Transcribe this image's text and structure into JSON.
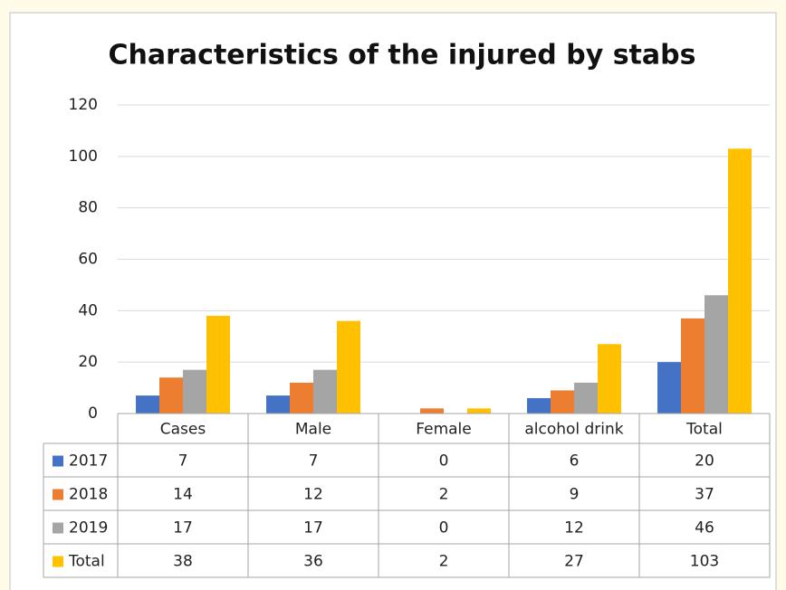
{
  "chart_data": {
    "type": "bar",
    "title": "Characteristics of the injured by stabs",
    "categories": [
      "Cases",
      "Male",
      "Female",
      "alcohol drink",
      "Total"
    ],
    "series": [
      {
        "name": "2017",
        "color": "#4472c4",
        "values": [
          7,
          7,
          0,
          6,
          20
        ]
      },
      {
        "name": "2018",
        "color": "#ed7d31",
        "values": [
          14,
          12,
          2,
          9,
          37
        ]
      },
      {
        "name": "2019",
        "color": "#a5a5a5",
        "values": [
          17,
          17,
          0,
          12,
          46
        ]
      },
      {
        "name": "Total",
        "color": "#ffc000",
        "values": [
          38,
          36,
          2,
          27,
          103
        ]
      }
    ],
    "ylim": [
      0,
      120
    ],
    "yticks": [
      0,
      20,
      40,
      60,
      80,
      100,
      120
    ],
    "grid": true,
    "data_table": true
  }
}
